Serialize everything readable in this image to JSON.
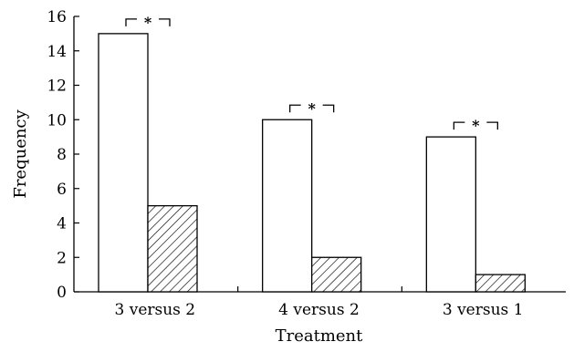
{
  "chart_data": {
    "type": "bar",
    "title": "",
    "xlabel": "Treatment",
    "ylabel": "Frequency",
    "categories": [
      "3 versus 2",
      "4 versus 2",
      "3 versus 1"
    ],
    "series": [
      {
        "fill": "plain",
        "values": [
          15,
          10,
          9
        ]
      },
      {
        "fill": "hatched",
        "values": [
          5,
          2,
          1
        ]
      }
    ],
    "ylim": [
      0,
      16
    ],
    "yticks": [
      0,
      2,
      4,
      6,
      8,
      10,
      12,
      14,
      16
    ],
    "annotations": [
      "*",
      "*",
      "*"
    ],
    "grid": false,
    "colors": {
      "plain_bar_fill": "#ffffff",
      "hatched_bar_fill": "#ffffff",
      "stroke": "#000000"
    }
  }
}
